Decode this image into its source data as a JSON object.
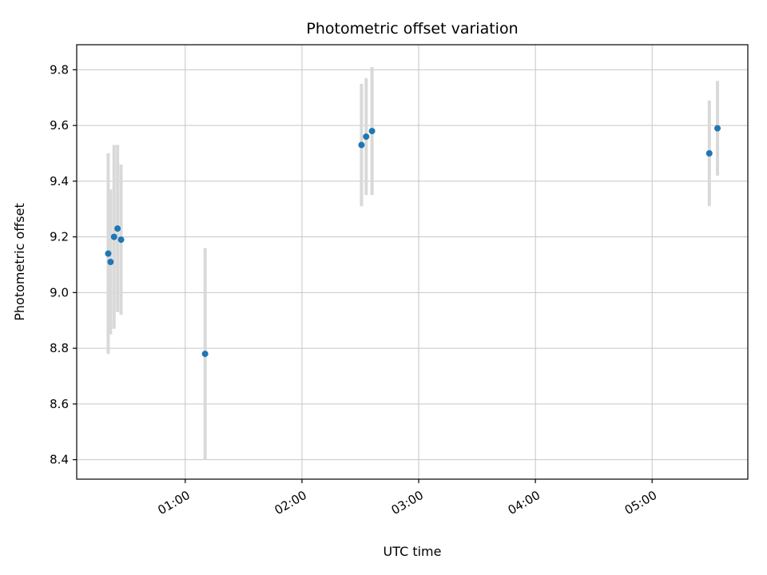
{
  "chart_data": {
    "type": "scatter",
    "title": "Photometric offset variation",
    "xlabel": "UTC time",
    "ylabel": "Photometric offset",
    "grid": true,
    "legend": false,
    "point_color": "#1f77b4",
    "errorbar_color": "#d9d9d9",
    "grid_color": "#c6c6c6",
    "xlim": [
      0.07,
      5.82
    ],
    "ylim": [
      8.33,
      9.89
    ],
    "x_ticks": [
      {
        "value": 1,
        "label": "01:00"
      },
      {
        "value": 2,
        "label": "02:00"
      },
      {
        "value": 3,
        "label": "03:00"
      },
      {
        "value": 4,
        "label": "04:00"
      },
      {
        "value": 5,
        "label": "05:00"
      }
    ],
    "y_ticks": [
      8.4,
      8.6,
      8.8,
      9.0,
      9.2,
      9.4,
      9.6,
      9.8
    ],
    "points": [
      {
        "x": 0.34,
        "y": 9.14,
        "yerr": 0.36
      },
      {
        "x": 0.36,
        "y": 9.11,
        "yerr": 0.26
      },
      {
        "x": 0.39,
        "y": 9.2,
        "yerr": 0.33
      },
      {
        "x": 0.42,
        "y": 9.23,
        "yerr": 0.3
      },
      {
        "x": 0.45,
        "y": 9.19,
        "yerr": 0.27
      },
      {
        "x": 1.17,
        "y": 8.78,
        "yerr": 0.38
      },
      {
        "x": 2.51,
        "y": 9.53,
        "yerr": 0.22
      },
      {
        "x": 2.55,
        "y": 9.56,
        "yerr": 0.21
      },
      {
        "x": 2.6,
        "y": 9.58,
        "yerr": 0.23
      },
      {
        "x": 5.49,
        "y": 9.5,
        "yerr": 0.19
      },
      {
        "x": 5.56,
        "y": 9.59,
        "yerr": 0.17
      }
    ]
  }
}
